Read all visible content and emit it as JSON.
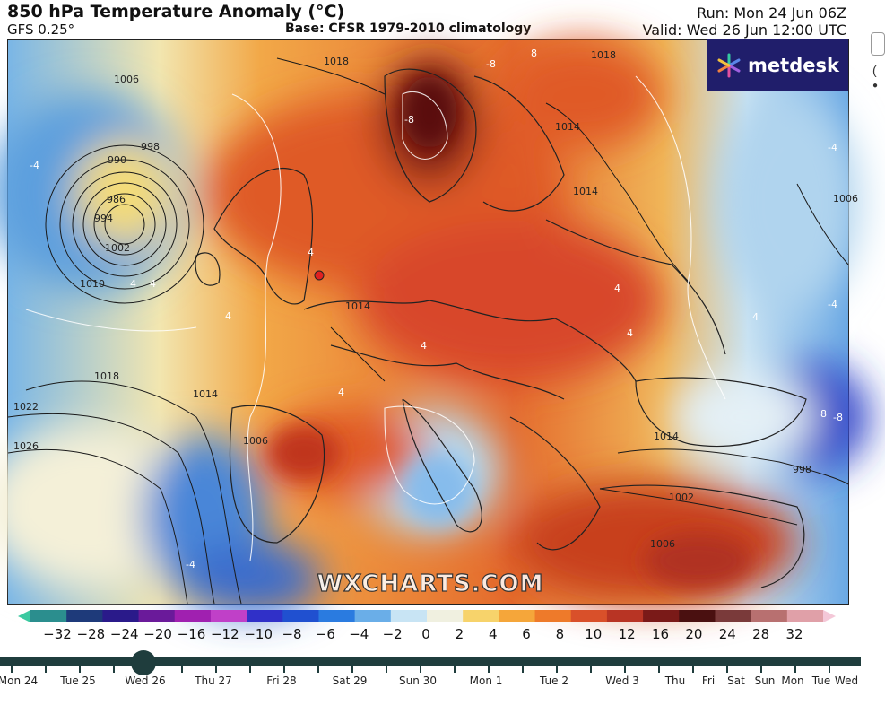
{
  "header": {
    "title": "850 hPa Temperature Anomaly (°C)",
    "model": "GFS 0.25°",
    "base": "Base: CFSR 1979-2010 climatology",
    "run": "Run: Mon 24 Jun 06Z",
    "valid": "Valid: Wed 26 Jun 12:00 UTC"
  },
  "logo": {
    "text": "metdesk",
    "icon": "metdesk-star-icon"
  },
  "watermark": "WXCHARTS.COM",
  "pressure_labels": [
    "1006",
    "998",
    "990",
    "986",
    "994",
    "1002",
    "1010",
    "1018",
    "1022",
    "1026",
    "1014",
    "1018",
    "1014",
    "1014",
    "1018",
    "1006",
    "1006",
    "1014",
    "998",
    "1002",
    "1006",
    "1014"
  ],
  "anomaly_labels": [
    "-8",
    "8",
    "-8",
    "8",
    "-4",
    "4",
    "4",
    "4",
    "4",
    "4",
    "4",
    "4",
    "4",
    "-4",
    "-4",
    "-4",
    "4",
    "-8"
  ],
  "colorbar": {
    "ticks": [
      "−32",
      "−28",
      "−24",
      "−20",
      "−16",
      "−12",
      "−10",
      "−8",
      "−6",
      "−4",
      "−2",
      "0",
      "2",
      "4",
      "6",
      "8",
      "10",
      "12",
      "16",
      "20",
      "24",
      "28",
      "32"
    ],
    "colors": [
      "#3cc9a0",
      "#2b8e8e",
      "#1e3a7a",
      "#2a1a8a",
      "#6a1a9a",
      "#a020b0",
      "#c040c8",
      "#3030c8",
      "#2050d0",
      "#2a7be0",
      "#6aaee8",
      "#c8e4f4",
      "#f0f0e0",
      "#f7d36b",
      "#f5a63a",
      "#ee7a2a",
      "#d9502a",
      "#b83424",
      "#7a1a18",
      "#4a1010",
      "#7a3a3a",
      "#b87070",
      "#e0a0a8",
      "#f4c8d8"
    ]
  },
  "timeline": {
    "days": [
      "Mon 24",
      "Tue 25",
      "Wed 26",
      "Thu 27",
      "Fri 28",
      "Sat 29",
      "Sun 30",
      "Mon 1",
      "Tue 2",
      "Wed 3",
      "Thu",
      "Fri",
      "Sat",
      "Sun",
      "Mon",
      "Tue",
      "Wed"
    ],
    "selected": "Wed 26"
  }
}
